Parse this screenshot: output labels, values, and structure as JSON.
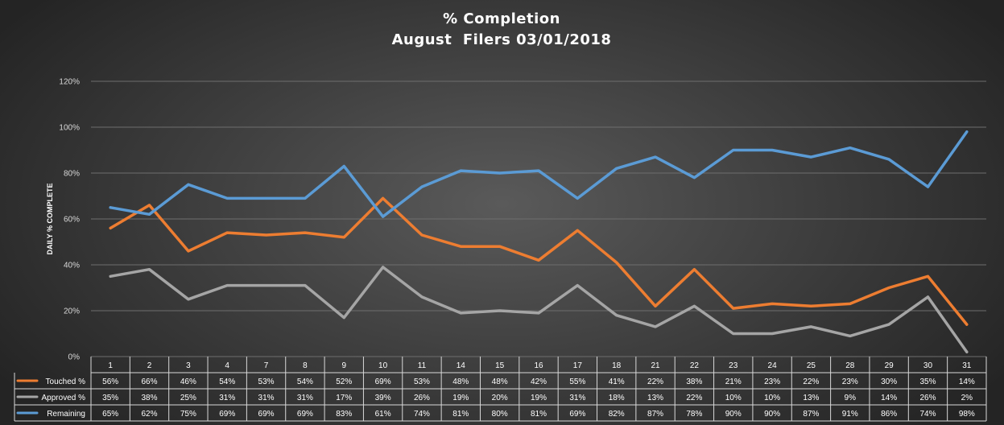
{
  "chart_data": {
    "type": "line",
    "title": "% Completion",
    "subtitle": "August  Filers 03/01/2018",
    "ylabel": "DAILY % COMPLETE",
    "xlabel": "",
    "ylim": [
      0,
      120
    ],
    "yticks": [
      "0%",
      "20%",
      "40%",
      "60%",
      "80%",
      "100%",
      "120%"
    ],
    "grid": true,
    "legend": "data-table",
    "categories": [
      "1",
      "2",
      "3",
      "4",
      "7",
      "8",
      "9",
      "10",
      "11",
      "14",
      "15",
      "16",
      "17",
      "18",
      "21",
      "22",
      "23",
      "24",
      "25",
      "28",
      "29",
      "30",
      "31"
    ],
    "series": [
      {
        "name": "Touched %",
        "color": "#ed7d31",
        "values": [
          56,
          66,
          46,
          54,
          53,
          54,
          52,
          69,
          53,
          48,
          48,
          42,
          55,
          41,
          22,
          38,
          21,
          23,
          22,
          23,
          30,
          35,
          14
        ],
        "labels": [
          "56%",
          "66%",
          "46%",
          "54%",
          "53%",
          "54%",
          "52%",
          "69%",
          "53%",
          "48%",
          "48%",
          "42%",
          "55%",
          "41%",
          "22%",
          "38%",
          "21%",
          "23%",
          "22%",
          "23%",
          "30%",
          "35%",
          "14%"
        ]
      },
      {
        "name": "Approved %",
        "color": "#a5a5a5",
        "values": [
          35,
          38,
          25,
          31,
          31,
          31,
          17,
          39,
          26,
          19,
          20,
          19,
          31,
          18,
          13,
          22,
          10,
          10,
          13,
          9,
          14,
          26,
          2
        ],
        "labels": [
          "35%",
          "38%",
          "25%",
          "31%",
          "31%",
          "31%",
          "17%",
          "39%",
          "26%",
          "19%",
          "20%",
          "19%",
          "31%",
          "18%",
          "13%",
          "22%",
          "10%",
          "10%",
          "13%",
          "9%",
          "14%",
          "26%",
          "2%"
        ]
      },
      {
        "name": "Remaining",
        "color": "#5b9bd5",
        "values": [
          65,
          62,
          75,
          69,
          69,
          69,
          83,
          61,
          74,
          81,
          80,
          81,
          69,
          82,
          87,
          78,
          90,
          90,
          87,
          91,
          86,
          74,
          98
        ],
        "labels": [
          "65%",
          "62%",
          "75%",
          "69%",
          "69%",
          "69%",
          "83%",
          "61%",
          "74%",
          "81%",
          "80%",
          "81%",
          "69%",
          "82%",
          "87%",
          "78%",
          "90%",
          "90%",
          "87%",
          "91%",
          "86%",
          "74%",
          "98%"
        ]
      }
    ]
  }
}
